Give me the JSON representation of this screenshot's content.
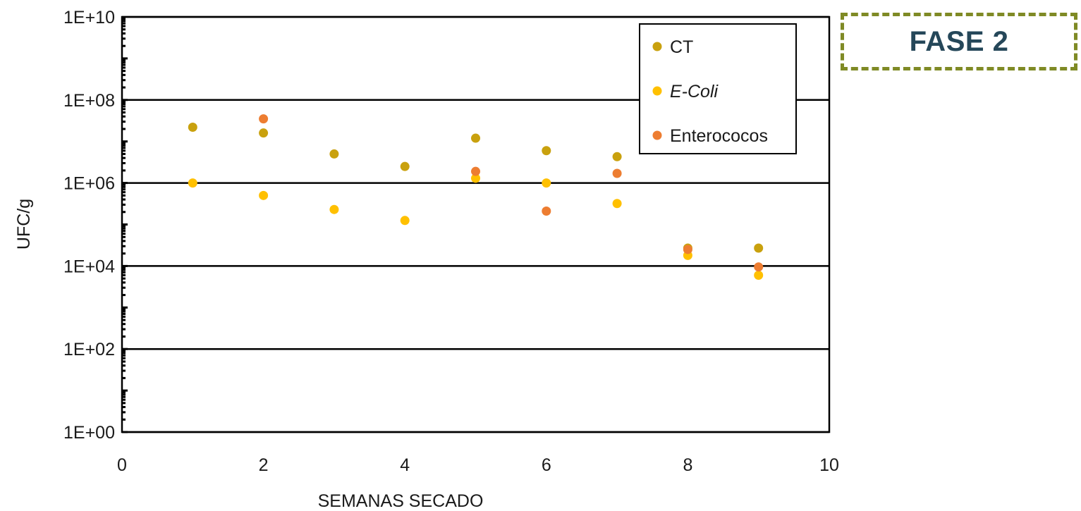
{
  "badge": {
    "label": "FASE 2",
    "border_color": "#7f8a25",
    "text_color": "#254759"
  },
  "chart_data": {
    "type": "scatter",
    "title": "",
    "xlabel": "SEMANAS SECADO",
    "ylabel": "UFC/g",
    "xlim": [
      0,
      10
    ],
    "ylim": [
      1,
      10000000000
    ],
    "yscale": "log",
    "x_ticks": [
      0,
      2,
      4,
      6,
      8,
      10
    ],
    "x_tick_labels": [
      "0",
      "2",
      "4",
      "6",
      "8",
      "10"
    ],
    "y_ticks": [
      1,
      100,
      10000,
      1000000,
      100000000,
      10000000000
    ],
    "y_tick_labels": [
      "1E+00",
      "1E+02",
      "1E+04",
      "1E+06",
      "1E+08",
      "1E+10"
    ],
    "grid": "horizontal",
    "legend_position": "top-right",
    "series": [
      {
        "name": "CT",
        "italic": false,
        "color": "#c9a10e",
        "x": [
          1,
          2,
          3,
          4,
          5,
          6,
          7,
          8,
          9
        ],
        "y": [
          22000000,
          16000000,
          5000000,
          2500000,
          12000000,
          6000000,
          4300000,
          27000,
          27000
        ]
      },
      {
        "name": "E-Coli",
        "italic": true,
        "color": "#ffc000",
        "x": [
          1,
          2,
          3,
          4,
          5,
          6,
          7,
          8,
          9
        ],
        "y": [
          1000000,
          500000,
          230000,
          125000,
          1300000,
          1000000,
          320000,
          18000,
          6000
        ]
      },
      {
        "name": "Enterococos",
        "italic": false,
        "color": "#ed7d31",
        "x": [
          2,
          5,
          6,
          7,
          8,
          9
        ],
        "y": [
          35000000,
          1900000,
          210000,
          1700000,
          25000,
          9500
        ]
      }
    ]
  }
}
